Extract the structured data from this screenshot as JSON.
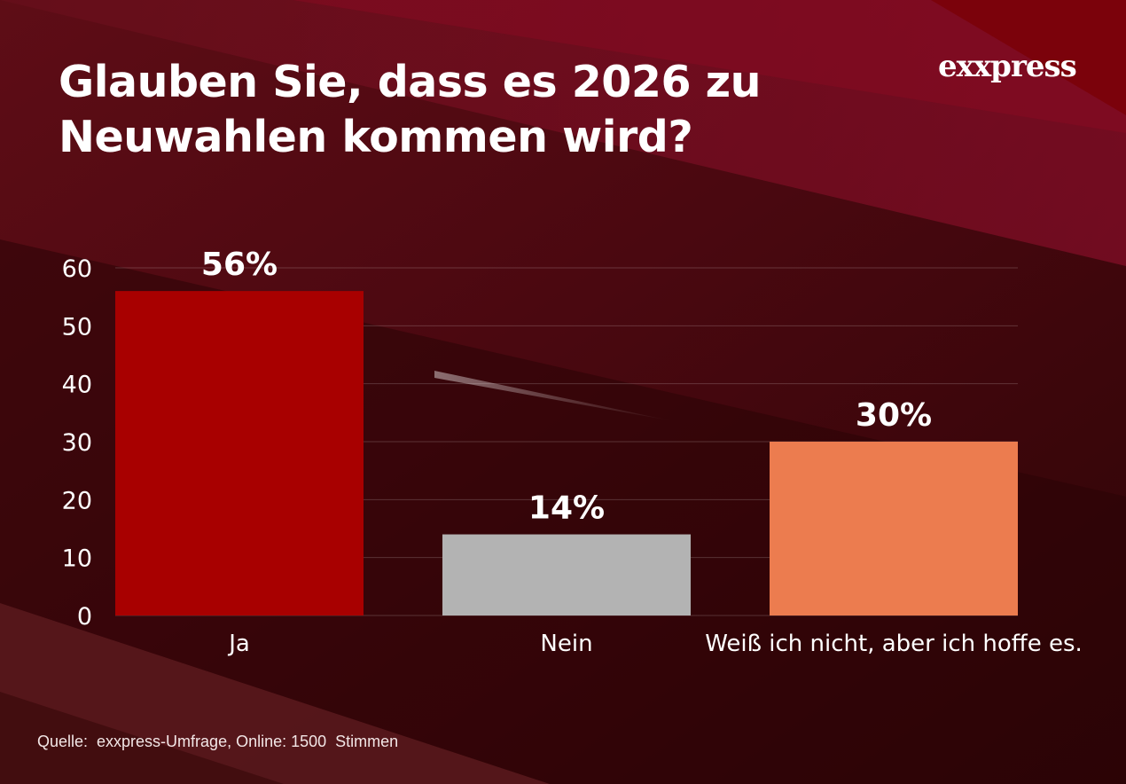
{
  "header": {
    "title_line1": "Glauben Sie, dass es 2026 zu",
    "title_line2": "Neuwahlen kommen wird?",
    "logo_text": "exxpress"
  },
  "chart_data": {
    "type": "bar",
    "categories": [
      "Ja",
      "Nein",
      "Weiß ich nicht, aber ich hoffe es."
    ],
    "values": [
      56,
      14,
      30
    ],
    "value_labels": [
      "56%",
      "14%",
      "30%"
    ],
    "colors": [
      "#a80000",
      "#b3b3b3",
      "#ec7c4f"
    ],
    "ylim": [
      0,
      60
    ],
    "yticks": [
      0,
      10,
      20,
      30,
      40,
      50,
      60
    ],
    "grid": true,
    "xlabel": "",
    "ylabel": ""
  },
  "footer": {
    "source": "Quelle:  exxpress-Umfrage, Online: 1500  Stimmen"
  },
  "colors": {
    "background_dark": "#3a0508",
    "background_accent": "#8c0f2a",
    "text": "#ffffff"
  }
}
